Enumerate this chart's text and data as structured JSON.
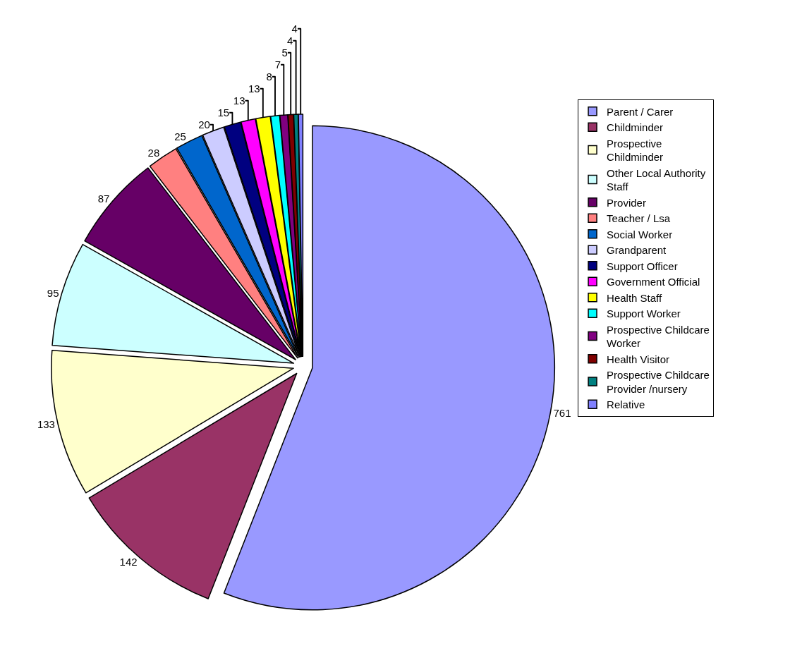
{
  "chart_data": {
    "type": "pie",
    "categories": [
      "Parent / Carer",
      "Childminder",
      "Prospective Childminder",
      "Other Local Authority Staff",
      "Provider",
      "Teacher / Lsa",
      "Social Worker",
      "Grandparent",
      "Support Officer",
      "Government Official",
      "Health Staff",
      "Support Worker",
      "Prospective Childcare Worker",
      "Health Visitor",
      "Prospective Childcare Provider /nursery",
      "Relative"
    ],
    "values": [
      761,
      142,
      133,
      95,
      87,
      28,
      25,
      20,
      15,
      13,
      13,
      8,
      7,
      5,
      4,
      4
    ],
    "colors": [
      "#9999ff",
      "#993366",
      "#ffffcc",
      "#ccffff",
      "#660066",
      "#ff8080",
      "#0066cc",
      "#ccccff",
      "#000080",
      "#ff00ff",
      "#ffff00",
      "#00ffff",
      "#800080",
      "#800000",
      "#008080",
      "#8080ff"
    ],
    "data_labels": true,
    "legend": "right"
  }
}
